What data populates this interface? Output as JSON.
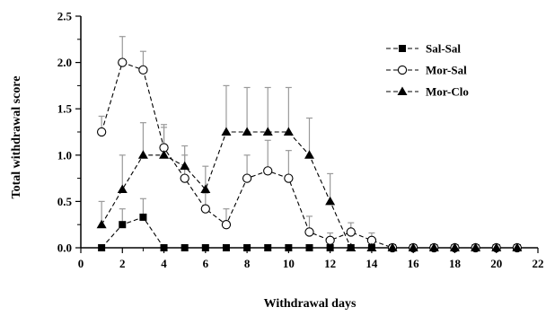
{
  "chart_data": {
    "type": "line",
    "xlabel": "Withdrawal days",
    "ylabel": "Total withdrawal score",
    "xlim": [
      0,
      22
    ],
    "ylim": [
      0,
      2.5
    ],
    "x_ticks": [
      "0",
      "2",
      "4",
      "6",
      "8",
      "10",
      "12",
      "14",
      "16",
      "18",
      "20",
      "22"
    ],
    "y_ticks": [
      "0.0",
      "0.5",
      "1.0",
      "1.5",
      "2.0",
      "2.5"
    ],
    "legend_position": "top-right",
    "grid": false,
    "series": [
      {
        "name": "Sal-Sal",
        "marker": "filled-square",
        "x": [
          1,
          2,
          3,
          4,
          5,
          6,
          7,
          8,
          9,
          10,
          11,
          12,
          13,
          14,
          15,
          16,
          17,
          18,
          19,
          20,
          21
        ],
        "values": [
          0,
          0.25,
          0.33,
          0,
          0,
          0,
          0,
          0,
          0,
          0,
          0,
          0,
          0,
          0,
          0,
          0,
          0,
          0,
          0,
          0,
          0
        ],
        "error": [
          0,
          0.17,
          0.2,
          0,
          0,
          0,
          0,
          0,
          0,
          0,
          0,
          0,
          0,
          0,
          0,
          0,
          0,
          0,
          0,
          0,
          0
        ]
      },
      {
        "name": "Mor-Sal",
        "marker": "open-circle",
        "x": [
          1,
          2,
          3,
          4,
          5,
          6,
          7,
          8,
          9,
          10,
          11,
          12,
          13,
          14,
          15,
          16,
          17,
          18,
          19,
          20,
          21
        ],
        "values": [
          1.25,
          2.0,
          1.92,
          1.08,
          0.75,
          0.42,
          0.25,
          0.75,
          0.83,
          0.75,
          0.17,
          0.08,
          0.17,
          0.08,
          0,
          0,
          0,
          0,
          0,
          0,
          0
        ],
        "error": [
          0.17,
          0.28,
          0.2,
          0.25,
          0.25,
          0.17,
          0.17,
          0.25,
          0.33,
          0.3,
          0.17,
          0.08,
          0.1,
          0.08,
          0,
          0,
          0,
          0,
          0,
          0,
          0
        ]
      },
      {
        "name": "Mor-Clo",
        "marker": "filled-triangle",
        "x": [
          1,
          2,
          3,
          4,
          5,
          6,
          7,
          8,
          9,
          10,
          11,
          12,
          13,
          14,
          15,
          16,
          17,
          18,
          19,
          20,
          21
        ],
        "values": [
          0.25,
          0.63,
          1.0,
          1.0,
          0.88,
          0.63,
          1.25,
          1.25,
          1.25,
          1.25,
          1.0,
          0.5,
          0,
          0,
          0,
          0,
          0,
          0,
          0,
          0,
          0
        ],
        "error": [
          0.25,
          0.37,
          0.35,
          0.3,
          0.22,
          0.25,
          0.5,
          0.48,
          0.48,
          0.48,
          0.4,
          0.3,
          0,
          0,
          0,
          0,
          0,
          0,
          0,
          0,
          0
        ]
      }
    ]
  }
}
